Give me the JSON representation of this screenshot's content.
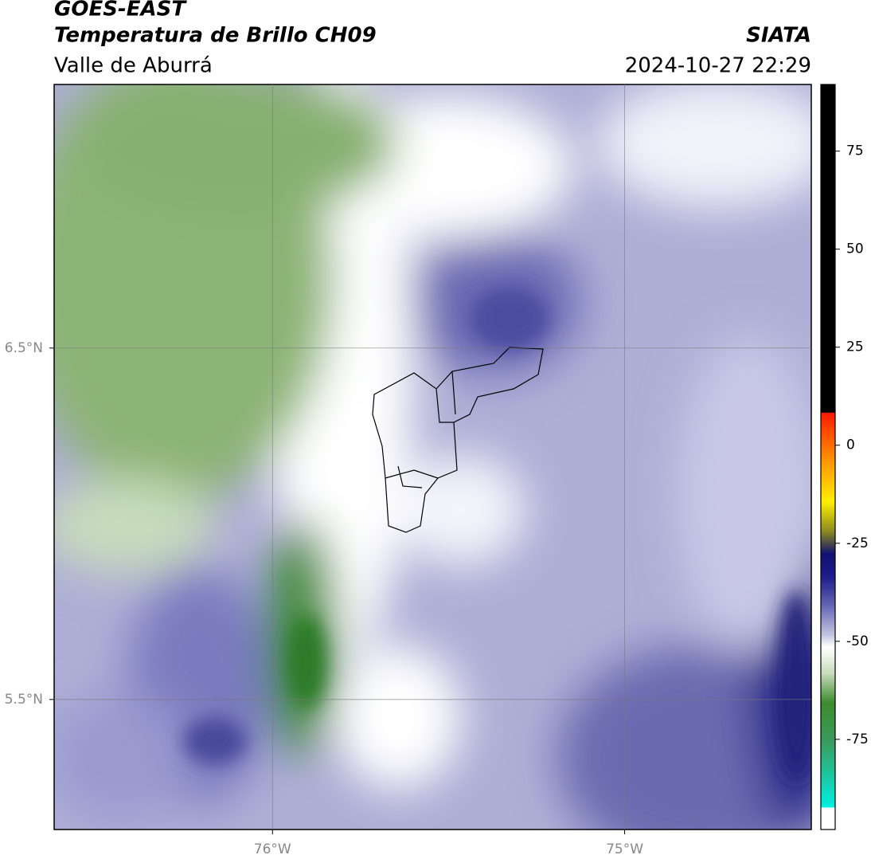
{
  "header": {
    "title": "GOES-EAST",
    "subtitle": "Temperatura de Brillo CH09",
    "region": "Valle de Aburrá",
    "source": "SIATA",
    "datetime": "2024-10-27 22:29"
  },
  "map": {
    "xlim": [
      -76.62,
      -74.47
    ],
    "ylim": [
      5.13,
      7.25
    ],
    "xticks": [
      {
        "value": -76,
        "label": "76°W"
      },
      {
        "value": -75,
        "label": "75°W"
      }
    ],
    "yticks": [
      {
        "value": 6.5,
        "label": "6.5°N"
      },
      {
        "value": 5.5,
        "label": "5.5°N"
      }
    ],
    "grid": true
  },
  "colorbar": {
    "lim": [
      -98,
      92
    ],
    "ticks": [
      75,
      50,
      25,
      0,
      -25,
      -50,
      -75
    ]
  }
}
